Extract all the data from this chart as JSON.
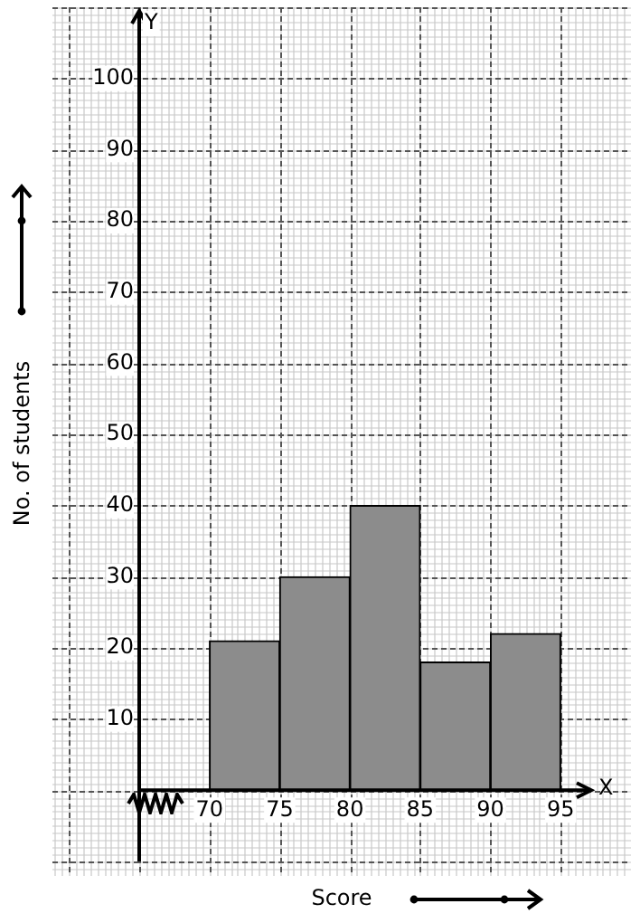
{
  "chart_data": {
    "type": "histogram",
    "xlabel": "Score",
    "ylabel": "No. of students",
    "bins": [
      70,
      75,
      80,
      85,
      90,
      95
    ],
    "values": [
      21,
      30,
      40,
      18,
      22
    ],
    "color": "#8c8c8c",
    "xlim": [
      65,
      100
    ],
    "ylim": [
      -10,
      110
    ],
    "xticks": [
      70,
      75,
      80,
      85,
      90,
      95
    ],
    "yticks": [
      10,
      20,
      30,
      40,
      50,
      60,
      70,
      80,
      90,
      100
    ],
    "grid": true,
    "legend": false,
    "annotations": [
      "Y",
      "X"
    ]
  }
}
